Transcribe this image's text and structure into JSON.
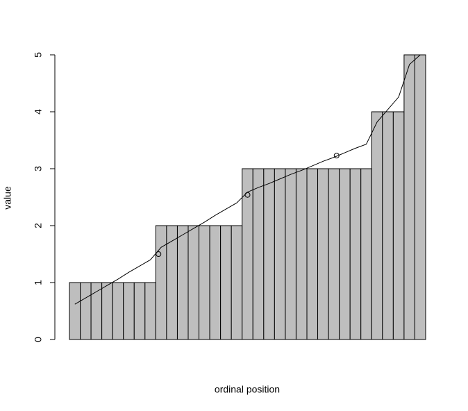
{
  "chart_data": {
    "type": "bar",
    "x_label": "ordinal position",
    "y_label": "value",
    "ylim": [
      0,
      5
    ],
    "yticks": [
      0,
      1,
      2,
      3,
      4,
      5
    ],
    "xlim": [
      0,
      33
    ],
    "bars": {
      "color": "#bebebe",
      "values": [
        1,
        1,
        1,
        1,
        1,
        1,
        1,
        1,
        2,
        2,
        2,
        2,
        2,
        2,
        2,
        2,
        3,
        3,
        3,
        3,
        3,
        3,
        3,
        3,
        3,
        3,
        3,
        3,
        4,
        4,
        4,
        5,
        5
      ]
    },
    "line": {
      "x": [
        0.5,
        1.5,
        2.5,
        3.5,
        4.5,
        5.5,
        6.5,
        7.5,
        8.5,
        9.5,
        10.5,
        11.5,
        12.5,
        13.5,
        14.5,
        15.5,
        16.5,
        17.5,
        18.5,
        19.5,
        20.5,
        21.5,
        22.5,
        23.5,
        24.5,
        25.5,
        26.5,
        27.5,
        28.5,
        29.5,
        30.5,
        31.5,
        32.5
      ],
      "values": [
        0.62,
        0.73,
        0.84,
        0.95,
        1.06,
        1.18,
        1.29,
        1.4,
        1.62,
        1.73,
        1.84,
        1.95,
        2.06,
        2.18,
        2.29,
        2.4,
        2.59,
        2.67,
        2.74,
        2.82,
        2.9,
        2.97,
        3.05,
        3.13,
        3.2,
        3.28,
        3.36,
        3.43,
        3.82,
        4.04,
        4.26,
        4.83,
        5.0
      ]
    },
    "points": {
      "x": [
        8.25,
        16.5,
        24.75
      ],
      "values": [
        1.5,
        2.54,
        3.23
      ]
    }
  }
}
